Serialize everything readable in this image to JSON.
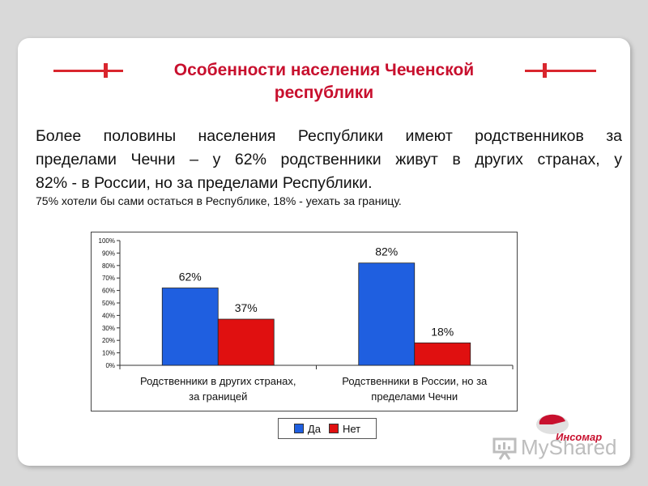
{
  "slide": {
    "title_line1": "Особенности населения Чеченской",
    "title_line2": "республики",
    "paragraph_lines": [
      "Более половины населения Республики имеют родственников за",
      "пределами Чечни – у 62% родственники живут в других странах, у",
      "82% - в России, но за пределами Республики."
    ],
    "subtext": "75% хотели бы сами остаться в Республике, 18% - уехать за границу."
  },
  "chart_data": {
    "type": "bar",
    "categories": [
      [
        "Родственники в других странах,",
        "за границей"
      ],
      [
        "Родственники в России, но за",
        "пределами Чечни"
      ]
    ],
    "series": [
      {
        "name": "Да",
        "values": [
          62,
          82
        ],
        "labels": [
          "62%",
          "82%"
        ],
        "color": "#1f5fe0"
      },
      {
        "name": "Нет",
        "values": [
          37,
          18
        ],
        "labels": [
          "37%",
          "18%"
        ],
        "color": "#e01010"
      }
    ],
    "y_ticks": [
      "0%",
      "10%",
      "20%",
      "30%",
      "40%",
      "50%",
      "60%",
      "70%",
      "80%",
      "90%",
      "100%"
    ],
    "ylim": [
      0,
      100
    ],
    "grid": false,
    "legend_position": "bottom"
  },
  "legend": {
    "yes": "Да",
    "no": "Нет"
  },
  "logo": {
    "name": "Инсомар"
  },
  "watermark": {
    "text": "MyShared"
  },
  "colors": {
    "accent": "#c8102e",
    "yes": "#1f5fe0",
    "no": "#e01010"
  }
}
